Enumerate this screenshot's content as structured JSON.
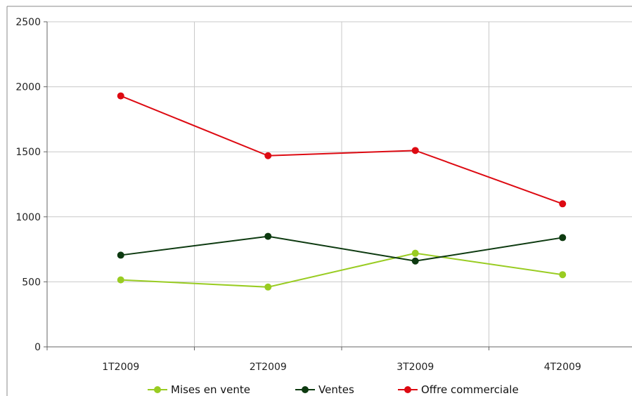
{
  "chart_data": {
    "type": "line",
    "categories": [
      "1T2009",
      "2T2009",
      "3T2009",
      "4T2009"
    ],
    "ylim": [
      0,
      2500
    ],
    "yticks": [
      0,
      500,
      1000,
      1500,
      2000,
      2500
    ],
    "grid": true,
    "legend_position": "bottom",
    "series": [
      {
        "name": "Mises en vente",
        "values": [
          515,
          460,
          720,
          555
        ],
        "color": "#99cc22"
      },
      {
        "name": "Ventes",
        "values": [
          705,
          850,
          660,
          840
        ],
        "color": "#0d3a10"
      },
      {
        "name": "Offre commerciale",
        "values": [
          1930,
          1470,
          1510,
          1100
        ],
        "color": "#dd0a12"
      }
    ]
  }
}
